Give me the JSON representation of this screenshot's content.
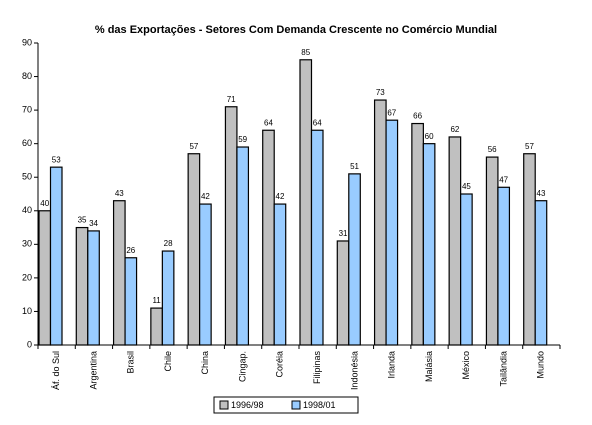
{
  "chart_data": {
    "type": "bar",
    "title": "% das Exportações - Setores Com Demanda Crescente no Comércio Mundial",
    "categories": [
      "Áf. do Sul",
      "Argentina",
      "Brasil",
      "Chile",
      "China",
      "Cingap.",
      "Coréia",
      "Filipinas",
      "Indonésia",
      "Irlanda",
      "Malásia",
      "México",
      "Tailândia",
      "Mundo"
    ],
    "series": [
      {
        "name": "1996/98",
        "color": "#c0c0c0",
        "values": [
          40,
          35,
          43,
          11,
          57,
          71,
          64,
          85,
          31,
          73,
          66,
          62,
          56,
          57
        ]
      },
      {
        "name": "1998/01",
        "color": "#99ccff",
        "values": [
          53,
          34,
          26,
          28,
          42,
          59,
          42,
          64,
          51,
          67,
          60,
          45,
          47,
          43
        ]
      }
    ],
    "ylim": [
      0,
      90
    ],
    "yticks": [
      0,
      10,
      20,
      30,
      40,
      50,
      60,
      70,
      80,
      90
    ],
    "legend": "bottom"
  }
}
